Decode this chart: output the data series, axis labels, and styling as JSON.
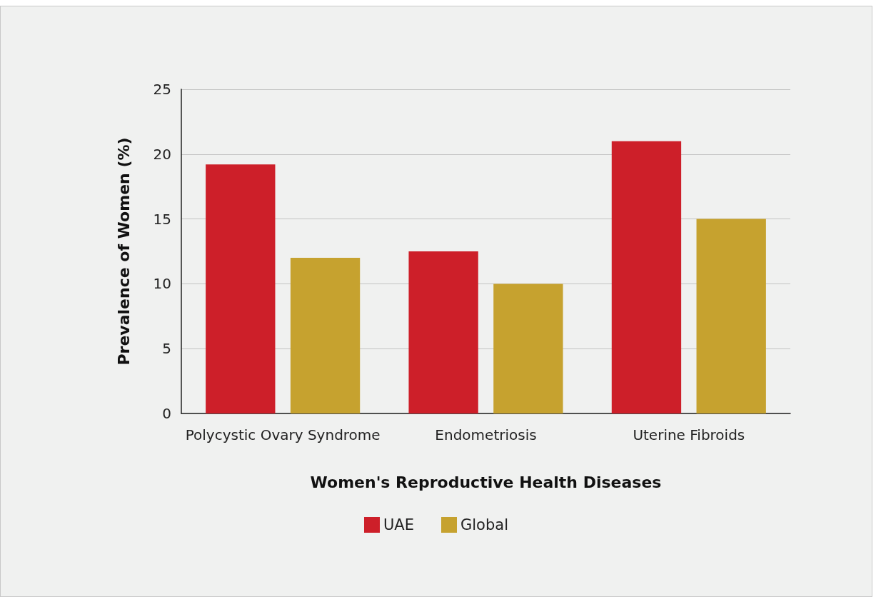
{
  "chart_data": {
    "type": "bar",
    "xlabel": "Women's Reproductive Health Diseases",
    "ylabel": "Prevalence of Women (%)",
    "categories": [
      "Polycystic Ovary Syndrome",
      "Endometriosis",
      "Uterine Fibroids"
    ],
    "series": [
      {
        "name": "UAE",
        "color": "#cd1f29",
        "values": [
          19.2,
          12.5,
          21
        ]
      },
      {
        "name": "Global",
        "color": "#c6a22f",
        "values": [
          12,
          10,
          15
        ]
      }
    ],
    "ylim": [
      0,
      25
    ],
    "yticks": [
      0,
      5,
      10,
      15,
      20,
      25
    ],
    "grid": "y",
    "legend": "bottom"
  }
}
